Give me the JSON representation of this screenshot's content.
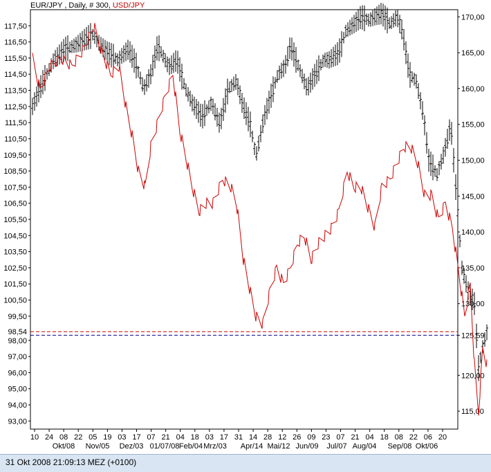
{
  "header": {
    "symbol": "EUR/JPY",
    "info": " , Daily, # 300, ",
    "overlay": "USD/JPY"
  },
  "status_bar": {
    "timestamp": "31 Okt 2008 21:09:13  MEZ (+0100)"
  },
  "colors": {
    "primary_series": "#000000",
    "overlay_series": "#cc0000",
    "red_ref_line": "#cc0000",
    "blue_ref_line": "#000099"
  },
  "chart_data": {
    "type": "line",
    "left_axis": {
      "label": "USD/JPY",
      "range": [
        92.5,
        118.5
      ],
      "ticks": [
        117.5,
        116.5,
        115.5,
        114.5,
        113.5,
        112.5,
        111.5,
        110.5,
        109.5,
        108.5,
        107.5,
        106.5,
        105.5,
        104.5,
        103.5,
        102.5,
        101.5,
        100.5,
        99.5,
        98.0,
        97.0,
        96.0,
        95.0,
        94.0,
        93.0
      ],
      "tick_labels": [
        "117,50",
        "116,50",
        "115,50",
        "114,50",
        "113,50",
        "112,50",
        "111,50",
        "110,50",
        "109,50",
        "108,50",
        "107,50",
        "106,50",
        "105,50",
        "104,50",
        "103,50",
        "102,50",
        "101,50",
        "100,50",
        "99,50",
        "98,00",
        "97,00",
        "96,00",
        "95,00",
        "94,00",
        "93,00"
      ],
      "reference": {
        "value": 98.54,
        "label": "98,54"
      }
    },
    "right_axis": {
      "label": "EUR/JPY",
      "range": [
        112.5,
        171.0
      ],
      "ticks": [
        170,
        165,
        160,
        155,
        150,
        145,
        140,
        135,
        130,
        125.59,
        120,
        115
      ],
      "tick_labels": [
        "170,00",
        "165,00",
        "160,00",
        "155,00",
        "150,00",
        "145,00",
        "140,00",
        "135,00",
        "130,00",
        "125,59",
        "120,00",
        "115,00"
      ],
      "reference": {
        "value": 125.59,
        "label": "125,59"
      }
    },
    "x_axis": {
      "day_labels": [
        "10",
        "24",
        "08",
        "22",
        "05",
        "19",
        "03",
        "17",
        "07",
        "21",
        "04",
        "18",
        "03",
        "17",
        "31",
        "14",
        "28",
        "12",
        "26",
        "09",
        "23",
        "07",
        "21",
        "04",
        "18",
        "08",
        "22",
        "06",
        "20"
      ],
      "month_labels": [
        "Okt/08",
        "Nov/05",
        "Dez/03",
        "01/07/08",
        "Feb/04",
        "Mrz/03",
        "Apr/14",
        "Mai/12",
        "Jun/09",
        "Jul/07",
        "Aug/04",
        "Sep/08",
        "Okt/06"
      ]
    },
    "series": [
      {
        "name": "EUR/JPY",
        "axis": "right",
        "style": "ohlc bars",
        "points": [
          [
            1,
            157.5
          ],
          [
            14,
            160.5
          ],
          [
            32,
            164
          ],
          [
            48,
            165.5
          ],
          [
            62,
            166
          ],
          [
            88,
            167.5
          ],
          [
            100,
            166
          ],
          [
            110,
            165
          ],
          [
            124,
            164
          ],
          [
            140,
            165.5
          ],
          [
            150,
            163.5
          ],
          [
            162,
            160
          ],
          [
            172,
            162
          ],
          [
            182,
            166
          ],
          [
            198,
            163
          ],
          [
            210,
            164
          ],
          [
            222,
            160
          ],
          [
            232,
            158
          ],
          [
            246,
            156
          ],
          [
            260,
            158
          ],
          [
            272,
            155
          ],
          [
            284,
            160
          ],
          [
            296,
            161
          ],
          [
            304,
            158
          ],
          [
            316,
            155
          ],
          [
            324,
            150.5
          ],
          [
            336,
            156
          ],
          [
            346,
            159
          ],
          [
            356,
            162
          ],
          [
            366,
            163
          ],
          [
            374,
            166
          ],
          [
            386,
            163
          ],
          [
            398,
            160
          ],
          [
            410,
            162
          ],
          [
            422,
            164
          ],
          [
            430,
            164
          ],
          [
            444,
            165
          ],
          [
            454,
            168
          ],
          [
            466,
            169
          ],
          [
            476,
            170
          ],
          [
            488,
            169.5
          ],
          [
            496,
            170
          ],
          [
            506,
            170.5
          ],
          [
            518,
            169
          ],
          [
            528,
            170
          ],
          [
            536,
            168
          ],
          [
            546,
            162
          ],
          [
            556,
            161
          ],
          [
            566,
            156.5
          ],
          [
            574,
            150
          ],
          [
            586,
            148
          ],
          [
            596,
            151
          ],
          [
            606,
            155
          ],
          [
            614,
            145
          ],
          [
            622,
            135
          ],
          [
            630,
            132
          ],
          [
            640,
            130
          ],
          [
            646,
            121
          ],
          [
            652,
            124
          ],
          [
            658,
            126
          ]
        ]
      },
      {
        "name": "USD/JPY",
        "axis": "left",
        "style": "line",
        "points": [
          [
            1,
            115.5
          ],
          [
            12,
            113.5
          ],
          [
            26,
            115
          ],
          [
            42,
            115.5
          ],
          [
            58,
            115
          ],
          [
            74,
            116
          ],
          [
            90,
            117.5
          ],
          [
            100,
            116
          ],
          [
            114,
            114.5
          ],
          [
            126,
            115
          ],
          [
            136,
            112.5
          ],
          [
            146,
            110.5
          ],
          [
            154,
            108.5
          ],
          [
            164,
            107.5
          ],
          [
            172,
            110
          ],
          [
            182,
            111.5
          ],
          [
            192,
            113
          ],
          [
            204,
            114.5
          ],
          [
            214,
            111
          ],
          [
            222,
            109.5
          ],
          [
            232,
            107.5
          ],
          [
            242,
            106
          ],
          [
            252,
            106.5
          ],
          [
            262,
            106.5
          ],
          [
            276,
            108
          ],
          [
            288,
            107.5
          ],
          [
            296,
            106.5
          ],
          [
            306,
            103
          ],
          [
            316,
            101
          ],
          [
            324,
            99.5
          ],
          [
            334,
            99
          ],
          [
            344,
            101
          ],
          [
            354,
            102.5
          ],
          [
            364,
            101.5
          ],
          [
            374,
            102.5
          ],
          [
            384,
            104
          ],
          [
            394,
            104.5
          ],
          [
            404,
            103
          ],
          [
            414,
            104
          ],
          [
            424,
            104.5
          ],
          [
            434,
            105
          ],
          [
            444,
            106
          ],
          [
            456,
            108.5
          ],
          [
            466,
            107.5
          ],
          [
            476,
            107.5
          ],
          [
            488,
            106
          ],
          [
            496,
            105
          ],
          [
            506,
            107.5
          ],
          [
            518,
            108
          ],
          [
            528,
            109
          ],
          [
            538,
            110
          ],
          [
            548,
            110
          ],
          [
            558,
            109
          ],
          [
            568,
            107
          ],
          [
            578,
            107
          ],
          [
            588,
            105.5
          ],
          [
            598,
            106.5
          ],
          [
            608,
            105
          ],
          [
            618,
            102
          ],
          [
            626,
            99.5
          ],
          [
            634,
            101.5
          ],
          [
            640,
            96.5
          ],
          [
            646,
            93.5
          ],
          [
            652,
            97.5
          ],
          [
            658,
            96.5
          ]
        ]
      }
    ],
    "reference_lines": [
      {
        "value": 98.54,
        "axis": "left",
        "style": "dashed red"
      },
      {
        "value": 125.59,
        "axis": "right",
        "style": "dashed blue"
      }
    ]
  }
}
